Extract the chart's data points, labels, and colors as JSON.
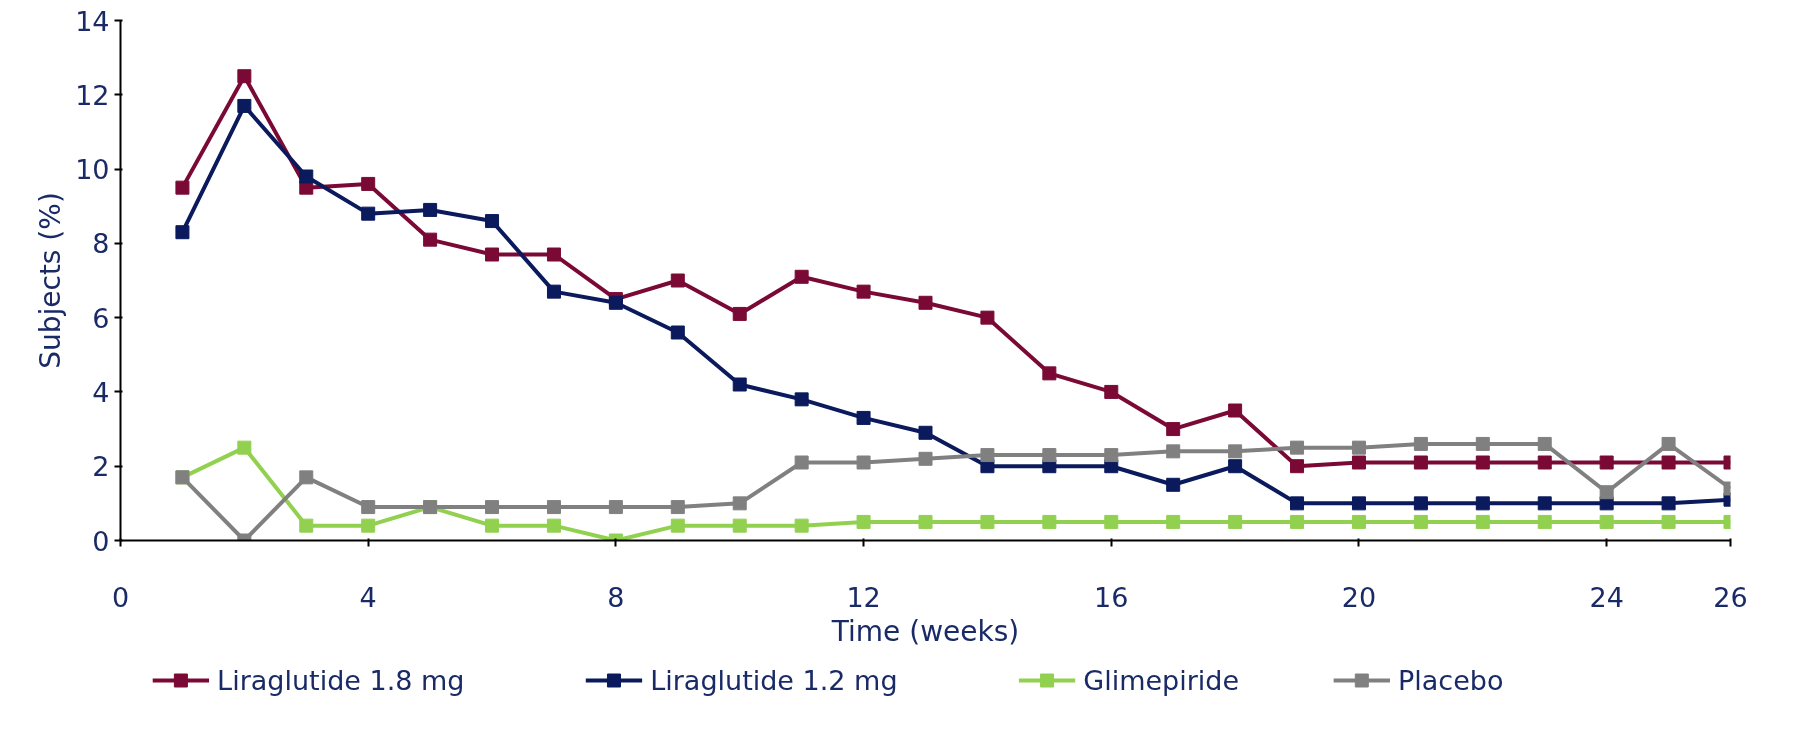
{
  "chart_data": {
    "type": "line",
    "xlabel": "Time (weeks)",
    "ylabel": "Subjects (%)",
    "xlim": [
      0,
      26
    ],
    "xticks": [
      0,
      4,
      8,
      12,
      16,
      20,
      24,
      26
    ],
    "ylim": [
      0,
      14
    ],
    "yticks": [
      0,
      2,
      4,
      6,
      8,
      10,
      12,
      14
    ],
    "grid": false,
    "legend": "bottom",
    "marker": "square",
    "line_style": "solid",
    "x": [
      1,
      2,
      3,
      4,
      5,
      6,
      7,
      8,
      9,
      10,
      11,
      12,
      13,
      14,
      15,
      16,
      17,
      18,
      19,
      20,
      21,
      22,
      23,
      24,
      25,
      26
    ],
    "series": [
      {
        "name": "Liraglutide 1.8 mg",
        "color": "#7a0a35",
        "values": [
          9.5,
          12.5,
          9.5,
          9.6,
          8.1,
          7.7,
          7.7,
          6.5,
          7.0,
          6.1,
          7.1,
          6.7,
          6.4,
          6.0,
          4.5,
          4.0,
          3.0,
          3.5,
          2.0,
          2.1,
          2.1,
          2.1,
          2.1,
          2.1,
          2.1,
          2.1
        ]
      },
      {
        "name": "Liraglutide 1.2 mg",
        "color": "#0a1a5c",
        "values": [
          8.3,
          11.7,
          9.8,
          8.8,
          8.9,
          8.6,
          6.7,
          6.4,
          5.6,
          4.2,
          3.8,
          3.3,
          2.9,
          2.0,
          2.0,
          2.0,
          1.5,
          2.0,
          1.0,
          1.0,
          1.0,
          1.0,
          1.0,
          1.0,
          1.0,
          1.1
        ]
      },
      {
        "name": "Glimepiride",
        "color": "#92d050",
        "values": [
          1.7,
          2.5,
          0.4,
          0.4,
          0.9,
          0.4,
          0.4,
          0,
          0.4,
          0.4,
          0.4,
          0.5,
          0.5,
          0.5,
          0.5,
          0.5,
          0.5,
          0.5,
          0.5,
          0.5,
          0.5,
          0.5,
          0.5,
          0.5,
          0.5,
          0.5
        ]
      },
      {
        "name": "Placebo",
        "color": "#808080",
        "values": [
          1.7,
          0,
          1.7,
          0.9,
          0.9,
          0.9,
          0.9,
          0.9,
          0.9,
          1.0,
          2.1,
          2.1,
          2.2,
          2.3,
          2.3,
          2.3,
          2.4,
          2.4,
          2.5,
          2.5,
          2.6,
          2.6,
          2.6,
          1.3,
          2.6,
          1.4
        ]
      }
    ]
  }
}
